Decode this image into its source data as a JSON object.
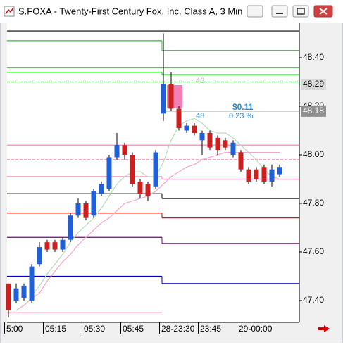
{
  "window_title": "S.FOXA - Twenty-First Century Fox, Inc. Class A, 3 Min",
  "chart_data": {
    "type": "candlestick",
    "categories": [
      "5:00",
      null,
      null,
      null,
      null,
      "05:15",
      null,
      null,
      null,
      null,
      "05:30",
      null,
      null,
      null,
      null,
      "05:45",
      null,
      null,
      null,
      null,
      "28-23:30",
      null,
      null,
      null,
      null,
      "23:45",
      null,
      null,
      null,
      null,
      "29-00:00",
      null,
      null,
      null,
      null,
      null
    ],
    "open": [
      47.47,
      47.4,
      47.41,
      47.4,
      47.55,
      47.64,
      47.64,
      47.61,
      47.65,
      47.75,
      47.8,
      47.75,
      47.84,
      47.86,
      47.99,
      48.04,
      48.0,
      47.89,
      47.88,
      47.87,
      48.17,
      48.29,
      48.19,
      48.1,
      48.12,
      48.06,
      48.09,
      48.07,
      48.06,
      48.0,
      48.01,
      47.94,
      47.94,
      47.95,
      47.89,
      47.92
    ],
    "high": [
      47.47,
      47.47,
      47.47,
      47.55,
      47.64,
      47.65,
      47.65,
      47.66,
      47.76,
      47.82,
      47.81,
      47.86,
      47.89,
      48.0,
      48.09,
      48.05,
      48.01,
      47.9,
      47.89,
      48.02,
      48.5,
      48.34,
      48.2,
      48.13,
      48.13,
      48.1,
      48.1,
      48.08,
      48.07,
      48.06,
      48.02,
      47.95,
      47.95,
      47.96,
      47.96,
      47.96
    ],
    "low": [
      47.33,
      47.39,
      47.4,
      47.39,
      47.54,
      47.6,
      47.6,
      47.6,
      47.64,
      47.74,
      47.73,
      47.74,
      47.83,
      47.85,
      47.98,
      47.98,
      47.87,
      47.82,
      47.81,
      47.86,
      48.14,
      48.18,
      48.1,
      48.09,
      48.08,
      48.0,
      48.02,
      48.0,
      48.02,
      47.99,
      47.93,
      47.88,
      47.89,
      47.88,
      47.87,
      47.91
    ],
    "close": [
      47.36,
      47.45,
      47.46,
      47.54,
      47.62,
      47.61,
      47.61,
      47.65,
      47.75,
      47.8,
      47.74,
      47.85,
      47.88,
      47.99,
      48.04,
      48.0,
      47.88,
      47.84,
      47.83,
      48.01,
      48.29,
      48.19,
      48.11,
      48.12,
      48.09,
      48.09,
      48.03,
      48.02,
      48.03,
      48.05,
      47.94,
      47.89,
      47.9,
      47.89,
      47.94,
      47.95
    ],
    "up_color": "#1f5fd8",
    "down_color": "#cc2020",
    "averages": [
      {
        "color": "#b8dcb8",
        "values": [
          null,
          null,
          null,
          47.42,
          47.46,
          47.51,
          47.55,
          47.59,
          47.64,
          47.68,
          47.71,
          47.74,
          47.78,
          47.83,
          47.88,
          47.91,
          47.93,
          47.93,
          47.91,
          47.91,
          47.97,
          48.06,
          48.12,
          48.14,
          48.15,
          48.13,
          48.1,
          48.09,
          48.09,
          48.07,
          48.04,
          48.01,
          47.98,
          47.94,
          47.91,
          47.9
        ]
      },
      {
        "color": "#f4a6c8",
        "values": [
          null,
          47.36,
          47.38,
          47.41,
          47.43,
          47.48,
          47.52,
          47.56,
          47.59,
          47.63,
          47.66,
          47.69,
          47.72,
          47.74,
          47.77,
          47.8,
          47.81,
          47.82,
          47.83,
          47.85,
          47.88,
          47.91,
          47.93,
          47.95,
          47.96,
          47.98,
          47.99,
          48.0,
          48.01,
          48.01,
          48.01,
          48.01,
          48.01,
          48.01,
          48.01,
          48.01
        ]
      }
    ],
    "levels": [
      {
        "color": "#000000",
        "values": [
          48.51,
          48.51
        ]
      },
      {
        "color": "#33bb33",
        "values": [
          48.47,
          48.43
        ]
      },
      {
        "color": "#00cc00",
        "values": [
          48.36,
          48.36
        ]
      },
      {
        "color": "#00cc00",
        "values": [
          48.34,
          48.33
        ]
      },
      {
        "color": "#33aa33",
        "dashed": true,
        "values": [
          48.3,
          48.3
        ]
      },
      {
        "color": "#aaaaaa",
        "values": [
          null,
          48.18
        ]
      },
      {
        "color": "#f080b0",
        "values": [
          48.04,
          48.04
        ]
      },
      {
        "color": "#f080b0",
        "dashed": true,
        "values": [
          47.98,
          47.98
        ]
      },
      {
        "color": "#f080b0",
        "values": [
          47.91,
          47.9
        ]
      },
      {
        "color": "#000000",
        "values": [
          47.84,
          47.82
        ]
      },
      {
        "color": "#cc0000",
        "values": [
          47.76,
          47.74
        ]
      },
      {
        "color": "#800080",
        "values": [
          47.66,
          47.635
        ]
      },
      {
        "color": "#0000cc",
        "values": [
          47.5,
          47.47
        ]
      },
      {
        "color": "#f080b0",
        "values": [
          47.35,
          null
        ]
      }
    ],
    "annotations": [
      "48",
      "48",
      "$0.11",
      "0.23 %"
    ],
    "ylim": [
      47.31,
      48.545
    ],
    "yticks": [
      {
        "value": 47.4,
        "label": "47.40"
      },
      {
        "value": 47.6,
        "label": "47.60"
      },
      {
        "value": 47.8,
        "label": "47.80"
      },
      {
        "value": 48.0,
        "label": "48.00"
      },
      {
        "value": 48.2,
        "label": "48.20"
      },
      {
        "value": 48.4,
        "label": "48.40"
      }
    ],
    "price_labels": [
      {
        "value": 48.29,
        "label": "48.29"
      },
      {
        "value": 48.18,
        "label": "48.18"
      }
    ]
  }
}
